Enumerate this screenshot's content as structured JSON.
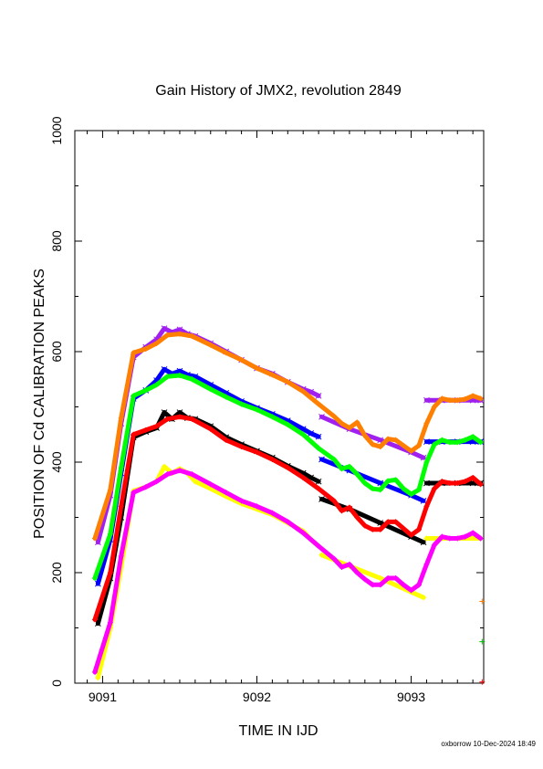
{
  "chart_data": {
    "type": "line",
    "title": "Gain History of JMX2, revolution 2849",
    "xlabel": "TIME IN IJD",
    "ylabel": "POSITION OF Cd CALIBRATION PEAKS",
    "xlim": [
      9090.82,
      9093.47
    ],
    "ylim": [
      0,
      1000
    ],
    "xticks": [
      9091,
      9092,
      9093
    ],
    "yticks": [
      0,
      200,
      400,
      600,
      800,
      1000
    ],
    "grid": false,
    "legend": "none",
    "series": [
      {
        "color": "#a020f0",
        "marker": "x",
        "x": [
          9090.97,
          9091.05,
          9091.12,
          9091.2,
          9091.28,
          9091.35,
          9091.4,
          9091.45,
          9091.5,
          9091.55,
          9091.6,
          9091.7,
          9091.8,
          9091.9,
          9092.0,
          9092.1,
          9092.2,
          9092.3,
          9092.35,
          9092.4
        ],
        "y": [
          255,
          340,
          470,
          590,
          608,
          622,
          642,
          635,
          640,
          632,
          628,
          615,
          600,
          585,
          570,
          560,
          545,
          532,
          527,
          520
        ]
      },
      {
        "color": "#a020f0",
        "marker": "x",
        "x": [
          9092.42,
          9092.6,
          9092.8,
          9093.0,
          9093.08
        ],
        "y": [
          482,
          460,
          440,
          418,
          408
        ]
      },
      {
        "color": "#a020f0",
        "marker": "x",
        "x": [
          9093.1,
          9093.2,
          9093.3,
          9093.4,
          9093.45
        ],
        "y": [
          512,
          512,
          512,
          512,
          512
        ]
      },
      {
        "color": "#0000ff",
        "marker": "x",
        "x": [
          9090.97,
          9091.05,
          9091.12,
          9091.2,
          9091.28,
          9091.35,
          9091.4,
          9091.45,
          9091.5,
          9091.55,
          9091.6,
          9091.7,
          9091.8,
          9091.9,
          9092.0,
          9092.1,
          9092.2,
          9092.3,
          9092.35,
          9092.4
        ],
        "y": [
          180,
          260,
          380,
          515,
          530,
          548,
          568,
          560,
          565,
          558,
          555,
          540,
          525,
          510,
          498,
          487,
          475,
          460,
          452,
          446
        ]
      },
      {
        "color": "#0000ff",
        "marker": "x",
        "x": [
          9092.42,
          9092.6,
          9092.8,
          9093.0,
          9093.08
        ],
        "y": [
          405,
          385,
          362,
          340,
          330
        ]
      },
      {
        "color": "#0000ff",
        "marker": "x",
        "x": [
          9093.1,
          9093.2,
          9093.3,
          9093.4,
          9093.45
        ],
        "y": [
          437,
          437,
          437,
          437,
          437
        ]
      },
      {
        "color": "#000000",
        "marker": "x",
        "x": [
          9090.97,
          9091.05,
          9091.12,
          9091.2,
          9091.28,
          9091.35,
          9091.4,
          9091.45,
          9091.5,
          9091.55,
          9091.6,
          9091.7,
          9091.8,
          9091.9,
          9092.0,
          9092.1,
          9092.2,
          9092.3,
          9092.35,
          9092.4
        ],
        "y": [
          108,
          190,
          300,
          445,
          455,
          462,
          490,
          478,
          490,
          480,
          478,
          465,
          445,
          432,
          420,
          408,
          393,
          380,
          372,
          365
        ]
      },
      {
        "color": "#000000",
        "marker": "x",
        "x": [
          9092.42,
          9092.6,
          9092.8,
          9093.0,
          9093.08
        ],
        "y": [
          333,
          315,
          290,
          265,
          255
        ]
      },
      {
        "color": "#000000",
        "marker": "x",
        "x": [
          9093.1,
          9093.2,
          9093.3,
          9093.4,
          9093.45
        ],
        "y": [
          362,
          362,
          362,
          362,
          362
        ]
      },
      {
        "color": "#ffff00",
        "marker": "+",
        "x": [
          9090.97,
          9091.05,
          9091.12,
          9091.2,
          9091.28,
          9091.35,
          9091.4,
          9091.45,
          9091.5,
          9091.55,
          9091.6,
          9091.7,
          9091.8,
          9091.9,
          9092.0,
          9092.1,
          9092.2,
          9092.3,
          9092.35,
          9092.4
        ],
        "y": [
          10,
          100,
          210,
          348,
          355,
          365,
          392,
          380,
          388,
          380,
          365,
          352,
          338,
          325,
          315,
          305,
          290,
          275,
          260,
          248
        ]
      },
      {
        "color": "#ffff00",
        "marker": "+",
        "x": [
          9092.42,
          9092.6,
          9092.8,
          9093.0,
          9093.08
        ],
        "y": [
          232,
          212,
          190,
          165,
          155
        ]
      },
      {
        "color": "#ffff00",
        "marker": "+",
        "x": [
          9093.1,
          9093.2,
          9093.3,
          9093.4,
          9093.45
        ],
        "y": [
          262,
          262,
          262,
          262,
          262
        ]
      },
      {
        "color": "#ff8000",
        "marker": "+",
        "x": [
          9090.95,
          9091.05,
          9091.12,
          9091.2,
          9091.28,
          9091.35,
          9091.42,
          9091.5,
          9091.58,
          9091.7,
          9091.8,
          9091.9,
          9092.0,
          9092.1,
          9092.2,
          9092.3,
          9092.4,
          9092.5,
          9092.55,
          9092.6,
          9092.65,
          9092.7,
          9092.75,
          9092.8,
          9092.85,
          9092.9,
          9092.95,
          9093.0,
          9093.05,
          9093.1,
          9093.15,
          9093.2,
          9093.25,
          9093.3,
          9093.35,
          9093.4,
          9093.45
        ],
        "y": [
          262,
          350,
          480,
          598,
          605,
          615,
          630,
          632,
          628,
          612,
          598,
          585,
          570,
          558,
          545,
          528,
          505,
          483,
          470,
          462,
          472,
          448,
          432,
          428,
          442,
          440,
          430,
          420,
          430,
          470,
          500,
          515,
          512,
          512,
          514,
          520,
          515
        ]
      },
      {
        "color": "#00ff00",
        "marker": "+",
        "x": [
          9090.95,
          9091.05,
          9091.12,
          9091.2,
          9091.28,
          9091.35,
          9091.42,
          9091.5,
          9091.58,
          9091.7,
          9091.8,
          9091.9,
          9092.0,
          9092.1,
          9092.2,
          9092.3,
          9092.4,
          9092.5,
          9092.55,
          9092.6,
          9092.65,
          9092.7,
          9092.75,
          9092.8,
          9092.85,
          9092.9,
          9092.95,
          9093.0,
          9093.05,
          9093.1,
          9093.15,
          9093.2,
          9093.25,
          9093.3,
          9093.35,
          9093.4,
          9093.45
        ],
        "y": [
          190,
          270,
          390,
          520,
          530,
          540,
          555,
          557,
          550,
          532,
          518,
          505,
          495,
          482,
          468,
          450,
          425,
          405,
          388,
          392,
          378,
          362,
          352,
          350,
          366,
          368,
          352,
          342,
          350,
          400,
          432,
          440,
          436,
          436,
          440,
          446,
          436
        ]
      },
      {
        "color": "#ff0000",
        "marker": "+",
        "x": [
          9090.95,
          9091.05,
          9091.12,
          9091.2,
          9091.28,
          9091.35,
          9091.42,
          9091.5,
          9091.58,
          9091.7,
          9091.8,
          9091.9,
          9092.0,
          9092.1,
          9092.2,
          9092.3,
          9092.4,
          9092.5,
          9092.55,
          9092.6,
          9092.65,
          9092.7,
          9092.75,
          9092.8,
          9092.85,
          9092.9,
          9092.95,
          9093.0,
          9093.05,
          9093.1,
          9093.15,
          9093.2,
          9093.25,
          9093.3,
          9093.35,
          9093.4,
          9093.45
        ],
        "y": [
          115,
          200,
          320,
          450,
          458,
          465,
          478,
          482,
          478,
          460,
          440,
          428,
          418,
          405,
          390,
          372,
          352,
          330,
          312,
          318,
          300,
          285,
          278,
          278,
          292,
          292,
          280,
          268,
          278,
          320,
          352,
          365,
          362,
          362,
          365,
          372,
          360
        ]
      },
      {
        "color": "#ff00ff",
        "marker": "+",
        "x": [
          9090.95,
          9091.05,
          9091.12,
          9091.2,
          9091.28,
          9091.35,
          9091.42,
          9091.5,
          9091.58,
          9091.7,
          9091.8,
          9091.9,
          9092.0,
          9092.1,
          9092.2,
          9092.3,
          9092.4,
          9092.5,
          9092.55,
          9092.6,
          9092.65,
          9092.7,
          9092.75,
          9092.8,
          9092.85,
          9092.9,
          9092.95,
          9093.0,
          9093.05,
          9093.1,
          9093.15,
          9093.2,
          9093.25,
          9093.3,
          9093.35,
          9093.4,
          9093.45
        ],
        "y": [
          20,
          110,
          230,
          345,
          355,
          365,
          378,
          385,
          378,
          360,
          345,
          330,
          320,
          308,
          292,
          272,
          248,
          225,
          210,
          215,
          200,
          188,
          178,
          178,
          190,
          190,
          178,
          168,
          178,
          215,
          250,
          265,
          262,
          262,
          265,
          272,
          262
        ]
      },
      {
        "color": "#ff8000",
        "marker": "+",
        "x": [
          9093.46
        ],
        "y": [
          148
        ]
      },
      {
        "color": "#00c000",
        "marker": "+",
        "x": [
          9093.46
        ],
        "y": [
          75
        ]
      },
      {
        "color": "#ff0000",
        "marker": "+",
        "x": [
          9093.46
        ],
        "y": [
          2
        ]
      }
    ]
  },
  "footer": "oxborrow 10-Dec-2024 18:49"
}
